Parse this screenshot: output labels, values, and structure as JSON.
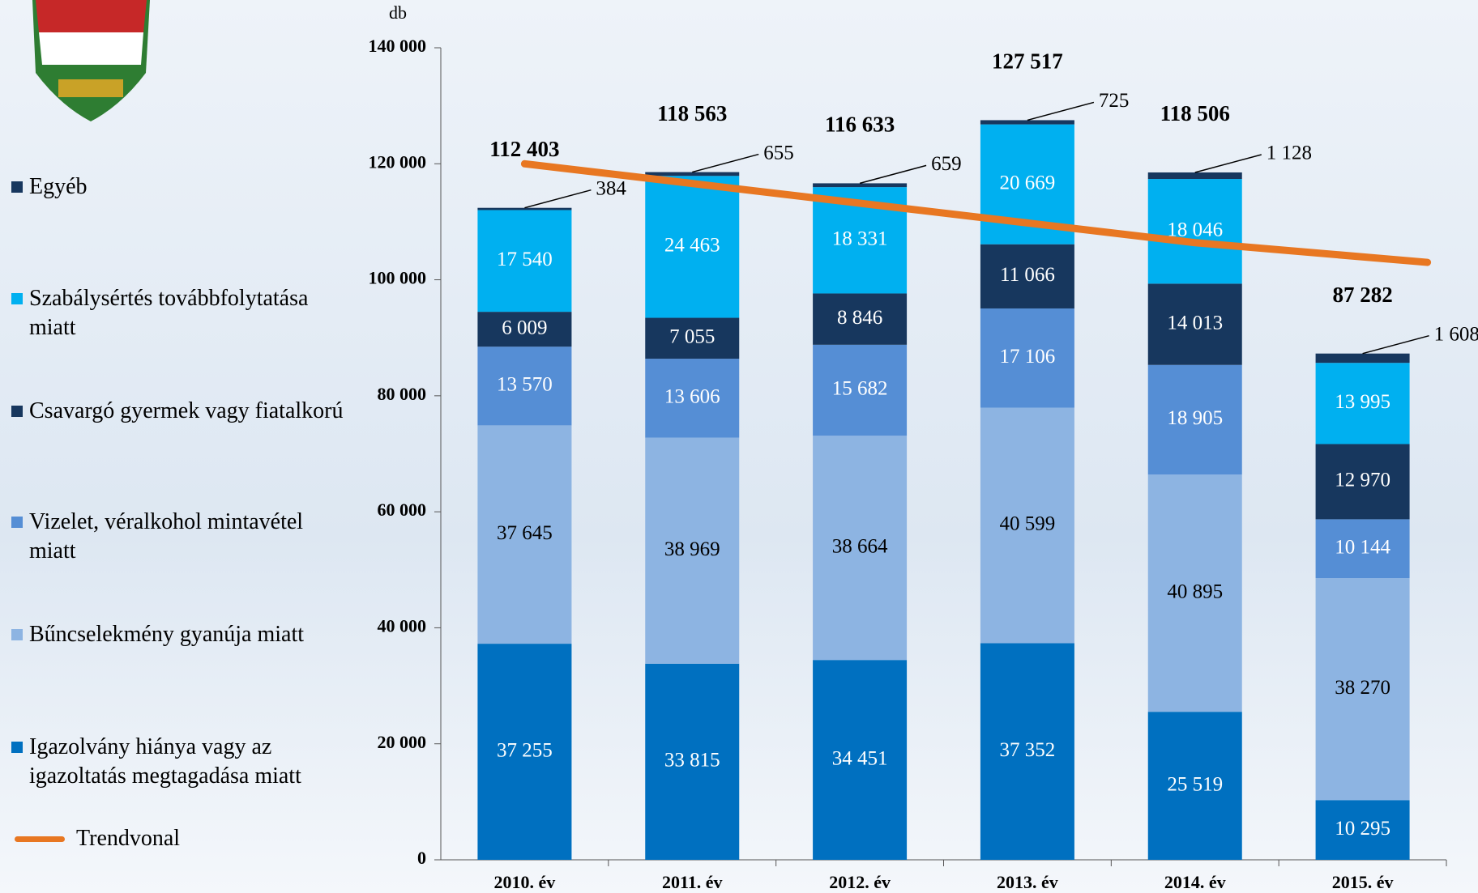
{
  "chart_data": {
    "type": "stacked_bar",
    "y_label": "db",
    "categories": [
      "2010. év",
      "2011. év",
      "2012. év",
      "2013. év",
      "2014. év",
      "2015. év"
    ],
    "series": [
      {
        "name": "Igazolvány hiánya vagy az igazoltatás megtagadása miatt",
        "color": "#0070c0",
        "label_color": "#ffffff",
        "values": [
          37255,
          33815,
          34451,
          37352,
          25519,
          10295
        ],
        "value_labels": [
          "37 255",
          "33 815",
          "34 451",
          "37 352",
          "25 519",
          "10 295"
        ]
      },
      {
        "name": "Bűncselekmény gyanúja miatt",
        "color": "#8db4e2",
        "label_color": "#000000",
        "values": [
          37645,
          38969,
          38664,
          40599,
          40895,
          38270
        ],
        "value_labels": [
          "37 645",
          "38 969",
          "38 664",
          "40 599",
          "40 895",
          "38 270"
        ]
      },
      {
        "name": "Vizelet, véralkohol mintavétel miatt",
        "color": "#558ed5",
        "label_color": "#ffffff",
        "values": [
          13570,
          13606,
          15682,
          17106,
          18905,
          10144
        ],
        "value_labels": [
          "13 570",
          "13 606",
          "15 682",
          "17 106",
          "18 905",
          "10 144"
        ]
      },
      {
        "name": "Csavargó gyermek vagy fiatalkorú",
        "color": "#17375e",
        "label_color": "#ffffff",
        "values": [
          6009,
          7055,
          8846,
          11066,
          14013,
          12970
        ],
        "value_labels": [
          "6 009",
          "7 055",
          "8 846",
          "11 066",
          "14 013",
          "12 970"
        ]
      },
      {
        "name": "Szabálysértés továbbfolytatása miatt",
        "color": "#00b0f0",
        "label_color": "#ffffff",
        "values": [
          17540,
          24463,
          18331,
          20669,
          18046,
          13995
        ],
        "value_labels": [
          "17 540",
          "24 463",
          "18 331",
          "20 669",
          "18 046",
          "13 995"
        ]
      },
      {
        "name": "Egyéb",
        "color": "#17375e",
        "label_color": "#000000",
        "values": [
          384,
          655,
          659,
          725,
          1128,
          1608
        ],
        "value_labels": [
          "384",
          "655",
          "659",
          "725",
          "1 128",
          "1 608"
        ]
      }
    ],
    "totals": [
      112403,
      118563,
      116633,
      127517,
      118506,
      87282
    ],
    "total_labels": [
      "112 403",
      "118 563",
      "116 633",
      "127 517",
      "118 506",
      "87 282"
    ],
    "trend": {
      "name": "Trendvonal",
      "color": "#e87722",
      "values": [
        120000,
        116600,
        113200,
        109800,
        106400,
        103000
      ]
    },
    "ylim": [
      0,
      140000
    ],
    "yticks": [
      0,
      {
        "value": 20000,
        "label": "20 000"
      },
      {
        "value": 40000,
        "label": "40 000"
      },
      {
        "value": 60000,
        "label": "60 000"
      },
      {
        "value": 80000,
        "label": "80 000"
      },
      {
        "value": 100000,
        "label": "100 000"
      },
      {
        "value": 120000,
        "label": "120 000"
      },
      {
        "value": 140000,
        "label": "140 000"
      }
    ]
  }
}
